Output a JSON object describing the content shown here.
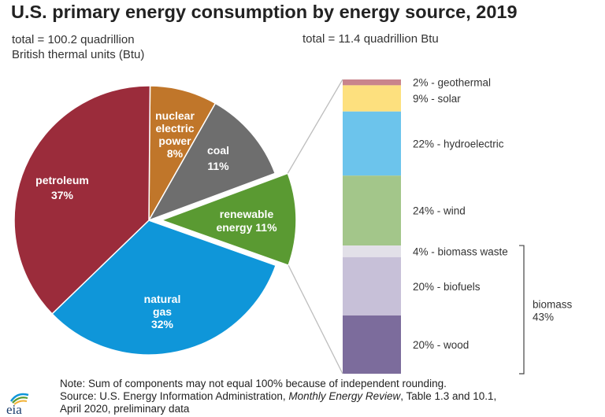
{
  "title": "U.S. primary energy consumption by energy source, 2019",
  "total_left": [
    "total = 100.2 quadrillion",
    "British thermal units (Btu)"
  ],
  "total_right": "total = 11.4 quadrillion Btu",
  "chart_data": [
    {
      "type": "pie",
      "slices": [
        {
          "label": [
            "nuclear",
            "electric",
            "power",
            "8%"
          ],
          "value": 8,
          "color": "#c0762a"
        },
        {
          "label": [
            "coal",
            "11%"
          ],
          "value": 11,
          "color": "#6e6e6e"
        },
        {
          "label": [
            "renewable",
            "energy 11%"
          ],
          "value": 11,
          "color": "#5a9a32",
          "exploded": true
        },
        {
          "label": [
            "natural",
            "gas",
            "32%"
          ],
          "value": 32,
          "color": "#0f96d9"
        },
        {
          "label": [
            "petroleum",
            "37%"
          ],
          "value": 37,
          "color": "#9b2c3b"
        }
      ]
    },
    {
      "type": "bar",
      "stacked": true,
      "categories": [
        "geothermal",
        "solar",
        "hydroelectric",
        "wind",
        "biomass waste",
        "biofuels",
        "wood"
      ],
      "values": [
        2,
        9,
        22,
        24,
        4,
        20,
        20
      ],
      "labels": [
        "2% - geothermal",
        "9% - solar",
        "22% - hydroelectric",
        "24% - wind",
        "4% - biomass waste",
        "20% - biofuels",
        "20% - wood"
      ],
      "colors": [
        "#c9848c",
        "#fde07e",
        "#6cc4ec",
        "#a3c68a",
        "#e2e0e8",
        "#c7c0d8",
        "#7c6c9c"
      ],
      "group": {
        "label": [
          "biomass",
          "43%"
        ],
        "members": [
          "biomass waste",
          "biofuels",
          "wood"
        ]
      }
    }
  ],
  "note_lines": {
    "note": "Note: Sum of components may not equal 100% because of independent rounding.",
    "source_a": "Source: U.S. Energy Information Administration, ",
    "source_italic": "Monthly Energy Review",
    "source_b": ", Table 1.3 and 10.1,",
    "source_c": "April 2020, preliminary data"
  },
  "logo": {
    "text": "eia",
    "name": "eia-logo"
  }
}
